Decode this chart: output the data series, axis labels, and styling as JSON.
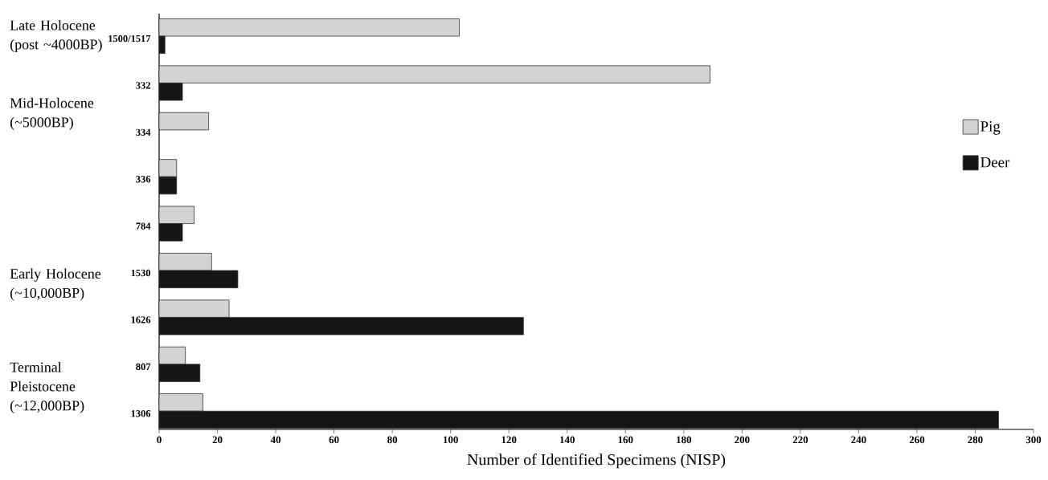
{
  "chart_data": {
    "type": "bar",
    "orientation": "horizontal",
    "xlabel": "Number of Identified Specimens (NISP)",
    "categories": [
      "1500/1517",
      "332",
      "334",
      "336",
      "784",
      "1530",
      "1626",
      "807",
      "1306"
    ],
    "series": [
      {
        "name": "Pig",
        "color": "#d3d3d3",
        "values": [
          103,
          189,
          17,
          6,
          12,
          18,
          24,
          9,
          15
        ]
      },
      {
        "name": "Deer",
        "color": "#151515",
        "values": [
          2,
          8,
          null,
          6,
          8,
          27,
          125,
          14,
          288
        ]
      }
    ],
    "annotations": [
      "Late Holocene (post ~4000BP)",
      "Mid-Holocene (~5000BP)",
      "Early Holocene (~10,000BP)",
      "Terminal Pleistocene (~12,000BP)"
    ],
    "xlim": [
      0,
      300
    ],
    "xticks": [
      0,
      20,
      40,
      60,
      80,
      100,
      120,
      140,
      160,
      180,
      200,
      220,
      240,
      260,
      280,
      300
    ],
    "legend": "right",
    "grid": false
  }
}
